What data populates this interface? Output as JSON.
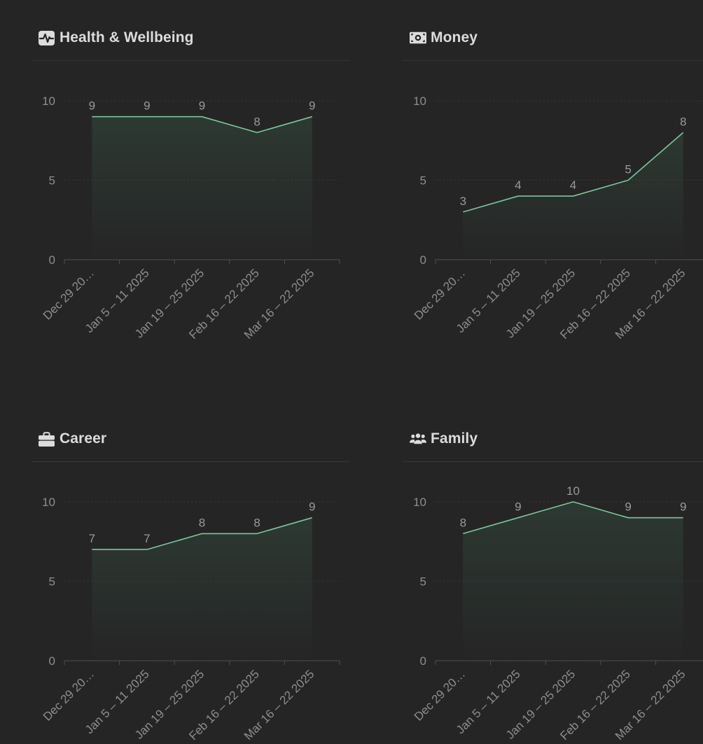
{
  "colors": {
    "background": "#252525",
    "line": "#79c79b",
    "axis": "#505050",
    "grid": "#3f3f3f",
    "text": "#8e8e8e",
    "title": "#dcdcdc"
  },
  "panels": [
    {
      "title": "Health & Wellbeing",
      "icon": "activity-icon"
    },
    {
      "title": "Money",
      "icon": "money-bill-icon"
    },
    {
      "title": "Career",
      "icon": "briefcase-icon"
    },
    {
      "title": "Family",
      "icon": "users-icon"
    }
  ],
  "chart_data": [
    {
      "type": "area",
      "title": "Health & Wellbeing",
      "categories": [
        "Dec 29 20…",
        "Jan 5 – 11 2025",
        "Jan 19 – 25 2025",
        "Feb 16 – 22 2025",
        "Mar 16 – 22 2025"
      ],
      "values": [
        9,
        9,
        9,
        8,
        9
      ],
      "ylim": [
        0,
        10
      ],
      "yticks": [
        0,
        5,
        10
      ],
      "grid": true
    },
    {
      "type": "area",
      "title": "Money",
      "categories": [
        "Dec 29 20…",
        "Jan 5 – 11 2025",
        "Jan 19 – 25 2025",
        "Feb 16 – 22 2025",
        "Mar 16 – 22 2025"
      ],
      "values": [
        3,
        4,
        4,
        5,
        8
      ],
      "ylim": [
        0,
        10
      ],
      "yticks": [
        0,
        5,
        10
      ],
      "grid": true
    },
    {
      "type": "area",
      "title": "Career",
      "categories": [
        "Dec 29 20…",
        "Jan 5 – 11 2025",
        "Jan 19 – 25 2025",
        "Feb 16 – 22 2025",
        "Mar 16 – 22 2025"
      ],
      "values": [
        7,
        7,
        8,
        8,
        9
      ],
      "ylim": [
        0,
        10
      ],
      "yticks": [
        0,
        5,
        10
      ],
      "grid": true
    },
    {
      "type": "area",
      "title": "Family",
      "categories": [
        "Dec 29 20…",
        "Jan 5 – 11 2025",
        "Jan 19 – 25 2025",
        "Feb 16 – 22 2025",
        "Mar 16 – 22 2025"
      ],
      "values": [
        8,
        9,
        10,
        9,
        9
      ],
      "ylim": [
        0,
        10
      ],
      "yticks": [
        0,
        5,
        10
      ],
      "grid": true
    }
  ]
}
